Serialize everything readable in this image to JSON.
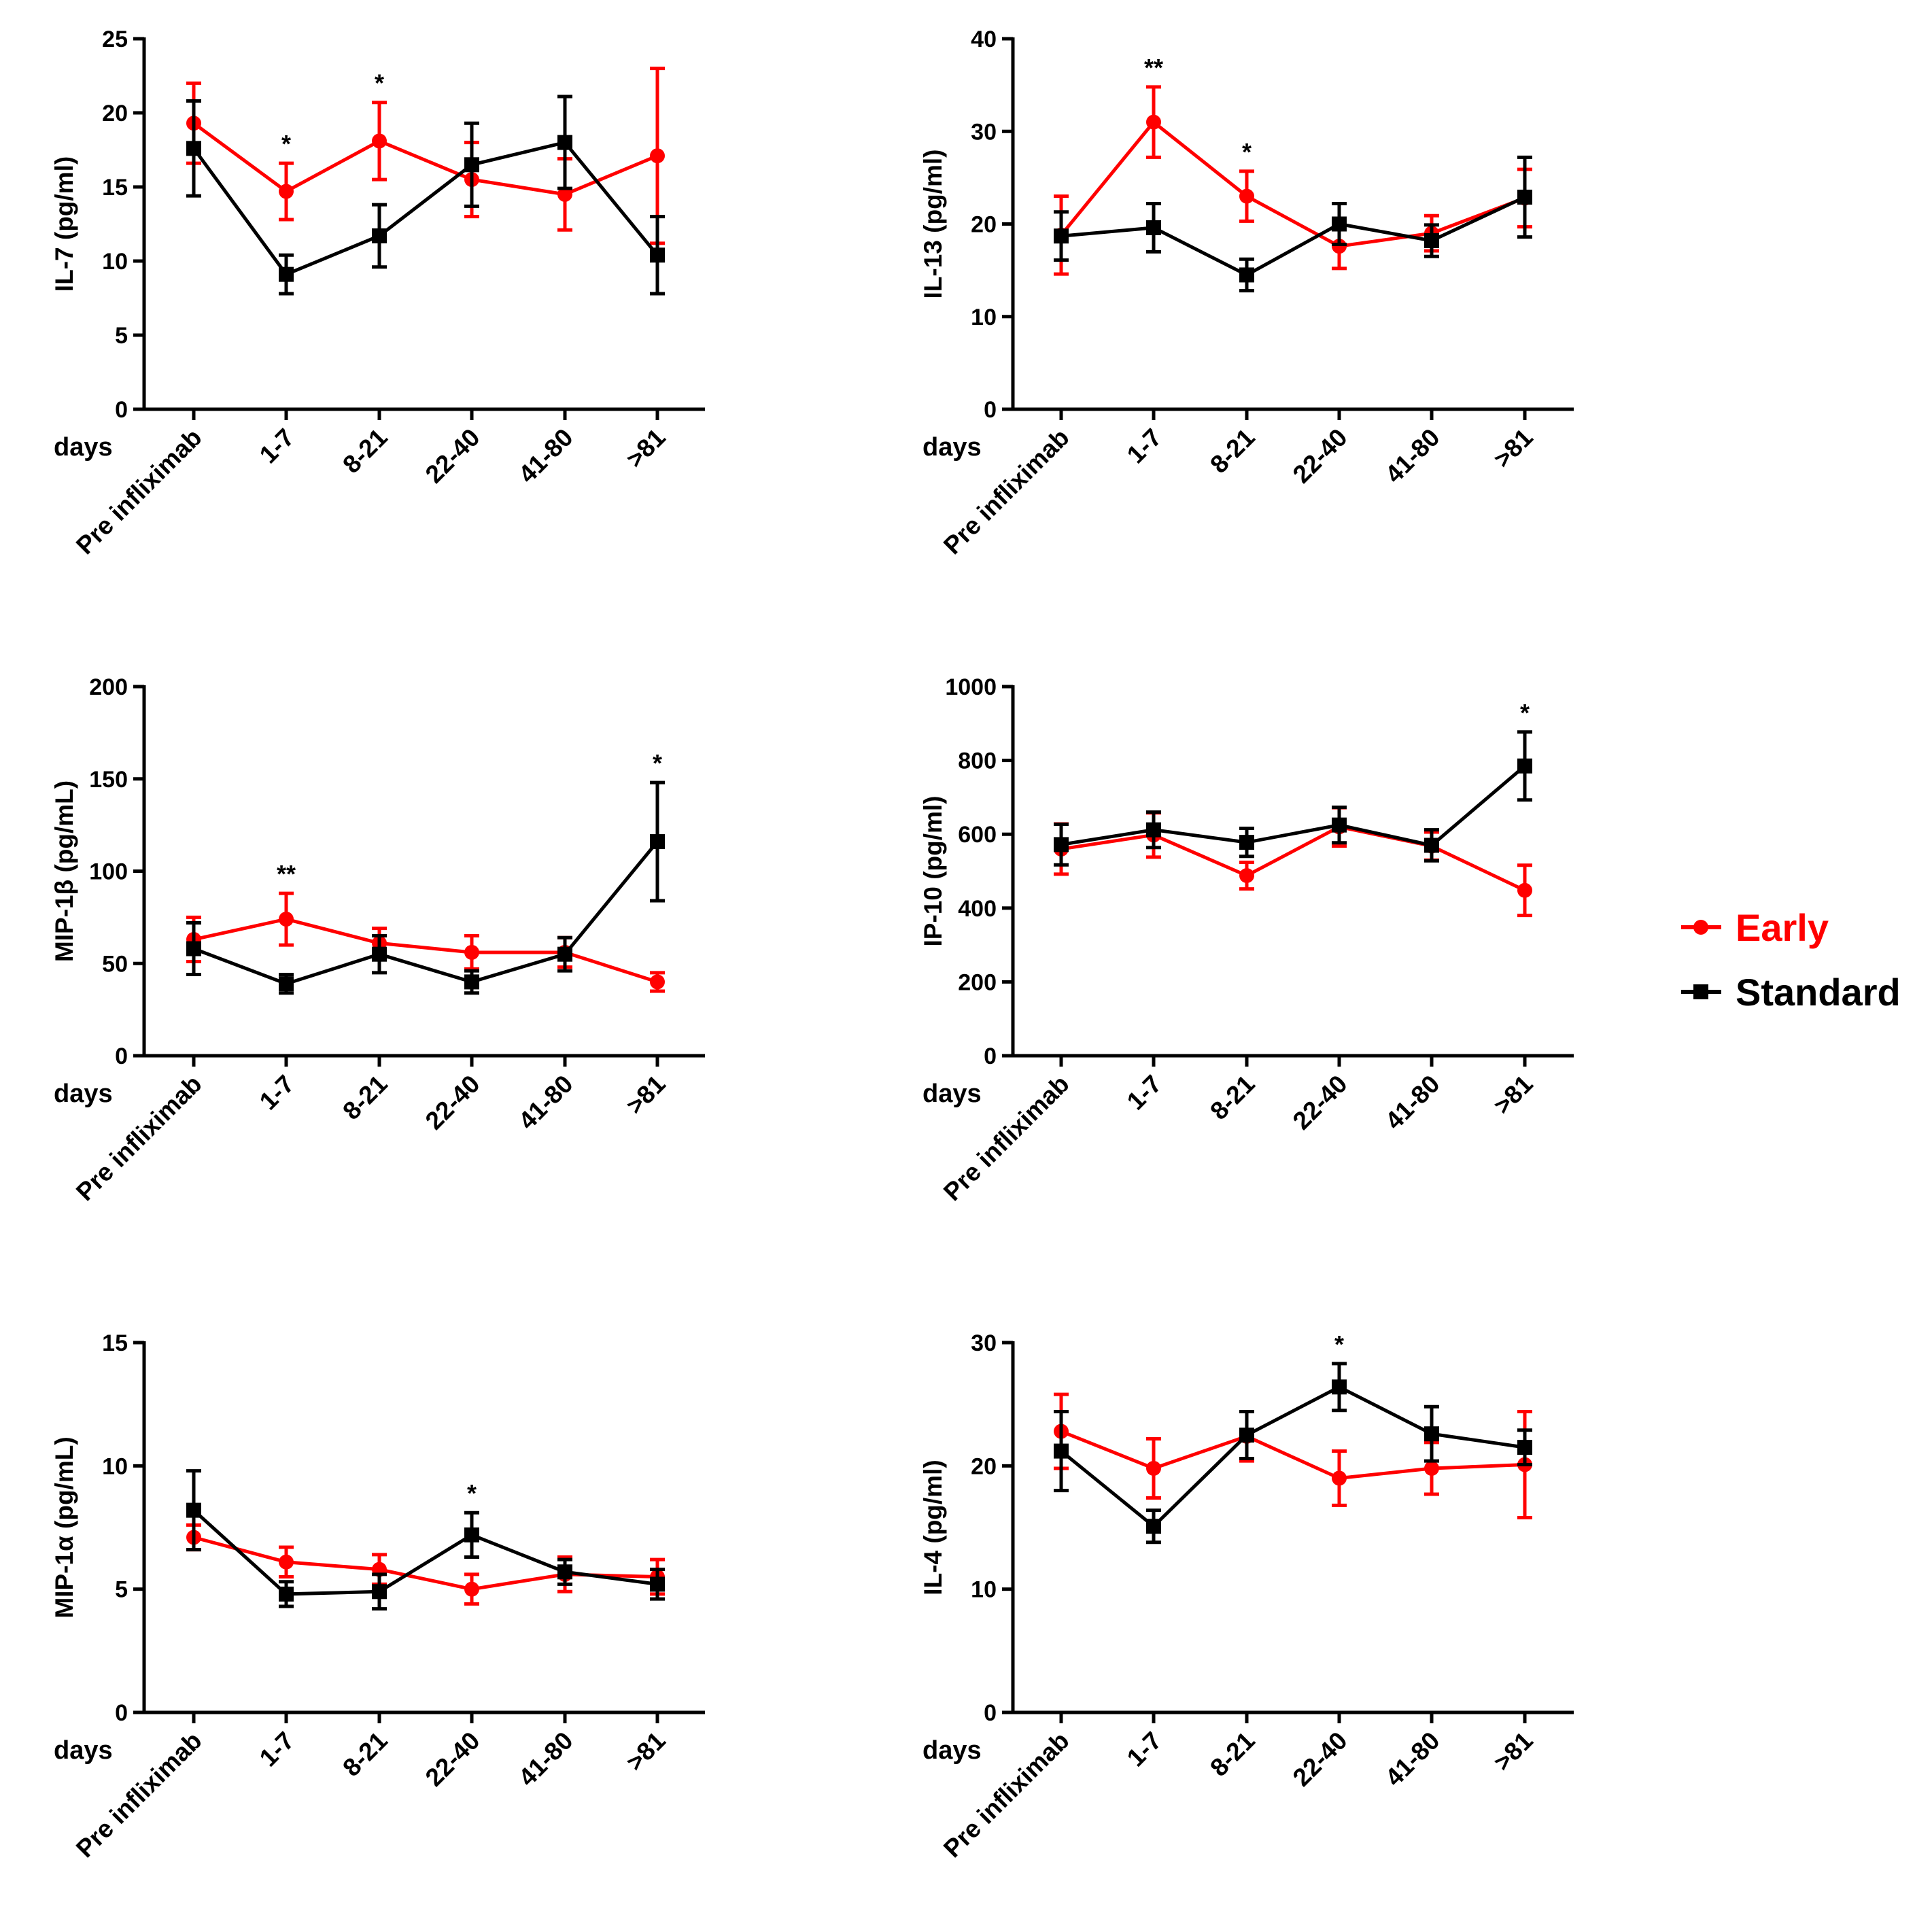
{
  "colors": {
    "early": "#ff0000",
    "standard": "#000000",
    "axis": "#000000"
  },
  "legend": {
    "items": [
      {
        "label": "Early",
        "color": "#ff0000",
        "marker": "circle"
      },
      {
        "label": "Standard",
        "color": "#000000",
        "marker": "square"
      }
    ]
  },
  "chart_data": [
    {
      "type": "line",
      "ylabel": "IL-7 (pg/ml)",
      "x_prefix": "days",
      "categories": [
        "Pre infliximab",
        "1-7",
        "8-21",
        "22-40",
        "41-80",
        ">81"
      ],
      "ylim": [
        0,
        25
      ],
      "yticks": [
        0,
        5,
        10,
        15,
        20,
        25
      ],
      "series": [
        {
          "name": "Early",
          "color": "#ff0000",
          "marker": "circle",
          "values": [
            19.3,
            14.7,
            18.1,
            15.5,
            14.5,
            17.1
          ],
          "err": [
            2.7,
            1.9,
            2.6,
            2.5,
            2.4,
            5.9
          ]
        },
        {
          "name": "Standard",
          "color": "#000000",
          "marker": "square",
          "values": [
            17.6,
            9.1,
            11.7,
            16.5,
            18.0,
            10.4
          ],
          "err": [
            3.2,
            1.3,
            2.1,
            2.8,
            3.1,
            2.6
          ]
        }
      ],
      "significance": [
        {
          "index": 1,
          "label": "*"
        },
        {
          "index": 2,
          "label": "*"
        }
      ]
    },
    {
      "type": "line",
      "ylabel": "IL-13 (pg/ml)",
      "x_prefix": "days",
      "categories": [
        "Pre infliximab",
        "1-7",
        "8-21",
        "22-40",
        "41-80",
        ">81"
      ],
      "ylim": [
        0,
        40
      ],
      "yticks": [
        0,
        10,
        20,
        30,
        40
      ],
      "series": [
        {
          "name": "Early",
          "color": "#ff0000",
          "marker": "circle",
          "values": [
            18.8,
            31.0,
            23.0,
            17.6,
            19.0,
            22.8
          ],
          "err": [
            4.2,
            3.8,
            2.7,
            2.4,
            1.9,
            3.1
          ]
        },
        {
          "name": "Standard",
          "color": "#000000",
          "marker": "square",
          "values": [
            18.7,
            19.6,
            14.5,
            20.0,
            18.2,
            22.9
          ],
          "err": [
            2.6,
            2.6,
            1.7,
            2.2,
            1.7,
            4.3
          ]
        }
      ],
      "significance": [
        {
          "index": 1,
          "label": "**"
        },
        {
          "index": 2,
          "label": "*"
        }
      ]
    },
    {
      "type": "line",
      "ylabel": "MIP-1β (pg/mL)",
      "x_prefix": "days",
      "categories": [
        "Pre infliximab",
        "1-7",
        "8-21",
        "22-40",
        "41-80",
        ">81"
      ],
      "ylim": [
        0,
        200
      ],
      "yticks": [
        0,
        50,
        100,
        150,
        200
      ],
      "series": [
        {
          "name": "Early",
          "color": "#ff0000",
          "marker": "circle",
          "values": [
            63,
            74,
            61,
            56,
            56,
            40
          ],
          "err": [
            12,
            14,
            8,
            9,
            8,
            5
          ]
        },
        {
          "name": "Standard",
          "color": "#000000",
          "marker": "square",
          "values": [
            58,
            39,
            55,
            40,
            55,
            116
          ],
          "err": [
            14,
            5,
            10,
            6,
            9,
            32
          ]
        }
      ],
      "significance": [
        {
          "index": 1,
          "label": "**"
        },
        {
          "index": 5,
          "label": "*"
        }
      ]
    },
    {
      "type": "line",
      "ylabel": "IP-10 (pg/ml)",
      "x_prefix": "days",
      "categories": [
        "Pre infliximab",
        "1-7",
        "8-21",
        "22-40",
        "41-80",
        ">81"
      ],
      "ylim": [
        0,
        1000
      ],
      "yticks": [
        0,
        200,
        400,
        600,
        800,
        1000
      ],
      "series": [
        {
          "name": "Early",
          "color": "#ff0000",
          "marker": "circle",
          "values": [
            560,
            598,
            488,
            620,
            568,
            448
          ],
          "err": [
            68,
            60,
            36,
            52,
            38,
            68
          ]
        },
        {
          "name": "Standard",
          "color": "#000000",
          "marker": "square",
          "values": [
            572,
            612,
            578,
            625,
            570,
            785
          ],
          "err": [
            55,
            48,
            38,
            48,
            42,
            92
          ]
        }
      ],
      "significance": [
        {
          "index": 5,
          "label": "*"
        }
      ]
    },
    {
      "type": "line",
      "ylabel": "MIP-1α (pg/mL)",
      "x_prefix": "days",
      "categories": [
        "Pre infliximab",
        "1-7",
        "8-21",
        "22-40",
        "41-80",
        ">81"
      ],
      "ylim": [
        0,
        15
      ],
      "yticks": [
        0,
        5,
        10,
        15
      ],
      "series": [
        {
          "name": "Early",
          "color": "#ff0000",
          "marker": "circle",
          "values": [
            7.1,
            6.1,
            5.8,
            5.0,
            5.6,
            5.5
          ],
          "err": [
            0.5,
            0.6,
            0.6,
            0.6,
            0.7,
            0.7
          ]
        },
        {
          "name": "Standard",
          "color": "#000000",
          "marker": "square",
          "values": [
            8.2,
            4.8,
            4.9,
            7.2,
            5.7,
            5.2
          ],
          "err": [
            1.6,
            0.5,
            0.7,
            0.9,
            0.5,
            0.6
          ]
        }
      ],
      "significance": [
        {
          "index": 3,
          "label": "*"
        }
      ]
    },
    {
      "type": "line",
      "ylabel": "IL-4 (pg/ml)",
      "x_prefix": "days",
      "categories": [
        "Pre infliximab",
        "1-7",
        "8-21",
        "22-40",
        "41-80",
        ">81"
      ],
      "ylim": [
        0,
        30
      ],
      "yticks": [
        0,
        10,
        20,
        30
      ],
      "series": [
        {
          "name": "Early",
          "color": "#ff0000",
          "marker": "circle",
          "values": [
            22.8,
            19.8,
            22.4,
            19.0,
            19.8,
            20.1
          ],
          "err": [
            3.0,
            2.4,
            2.0,
            2.2,
            2.1,
            4.3
          ]
        },
        {
          "name": "Standard",
          "color": "#000000",
          "marker": "square",
          "values": [
            21.2,
            15.1,
            22.5,
            26.4,
            22.6,
            21.5
          ],
          "err": [
            3.2,
            1.3,
            1.9,
            1.9,
            2.2,
            1.4
          ]
        }
      ],
      "significance": [
        {
          "index": 3,
          "label": "*"
        }
      ]
    }
  ]
}
